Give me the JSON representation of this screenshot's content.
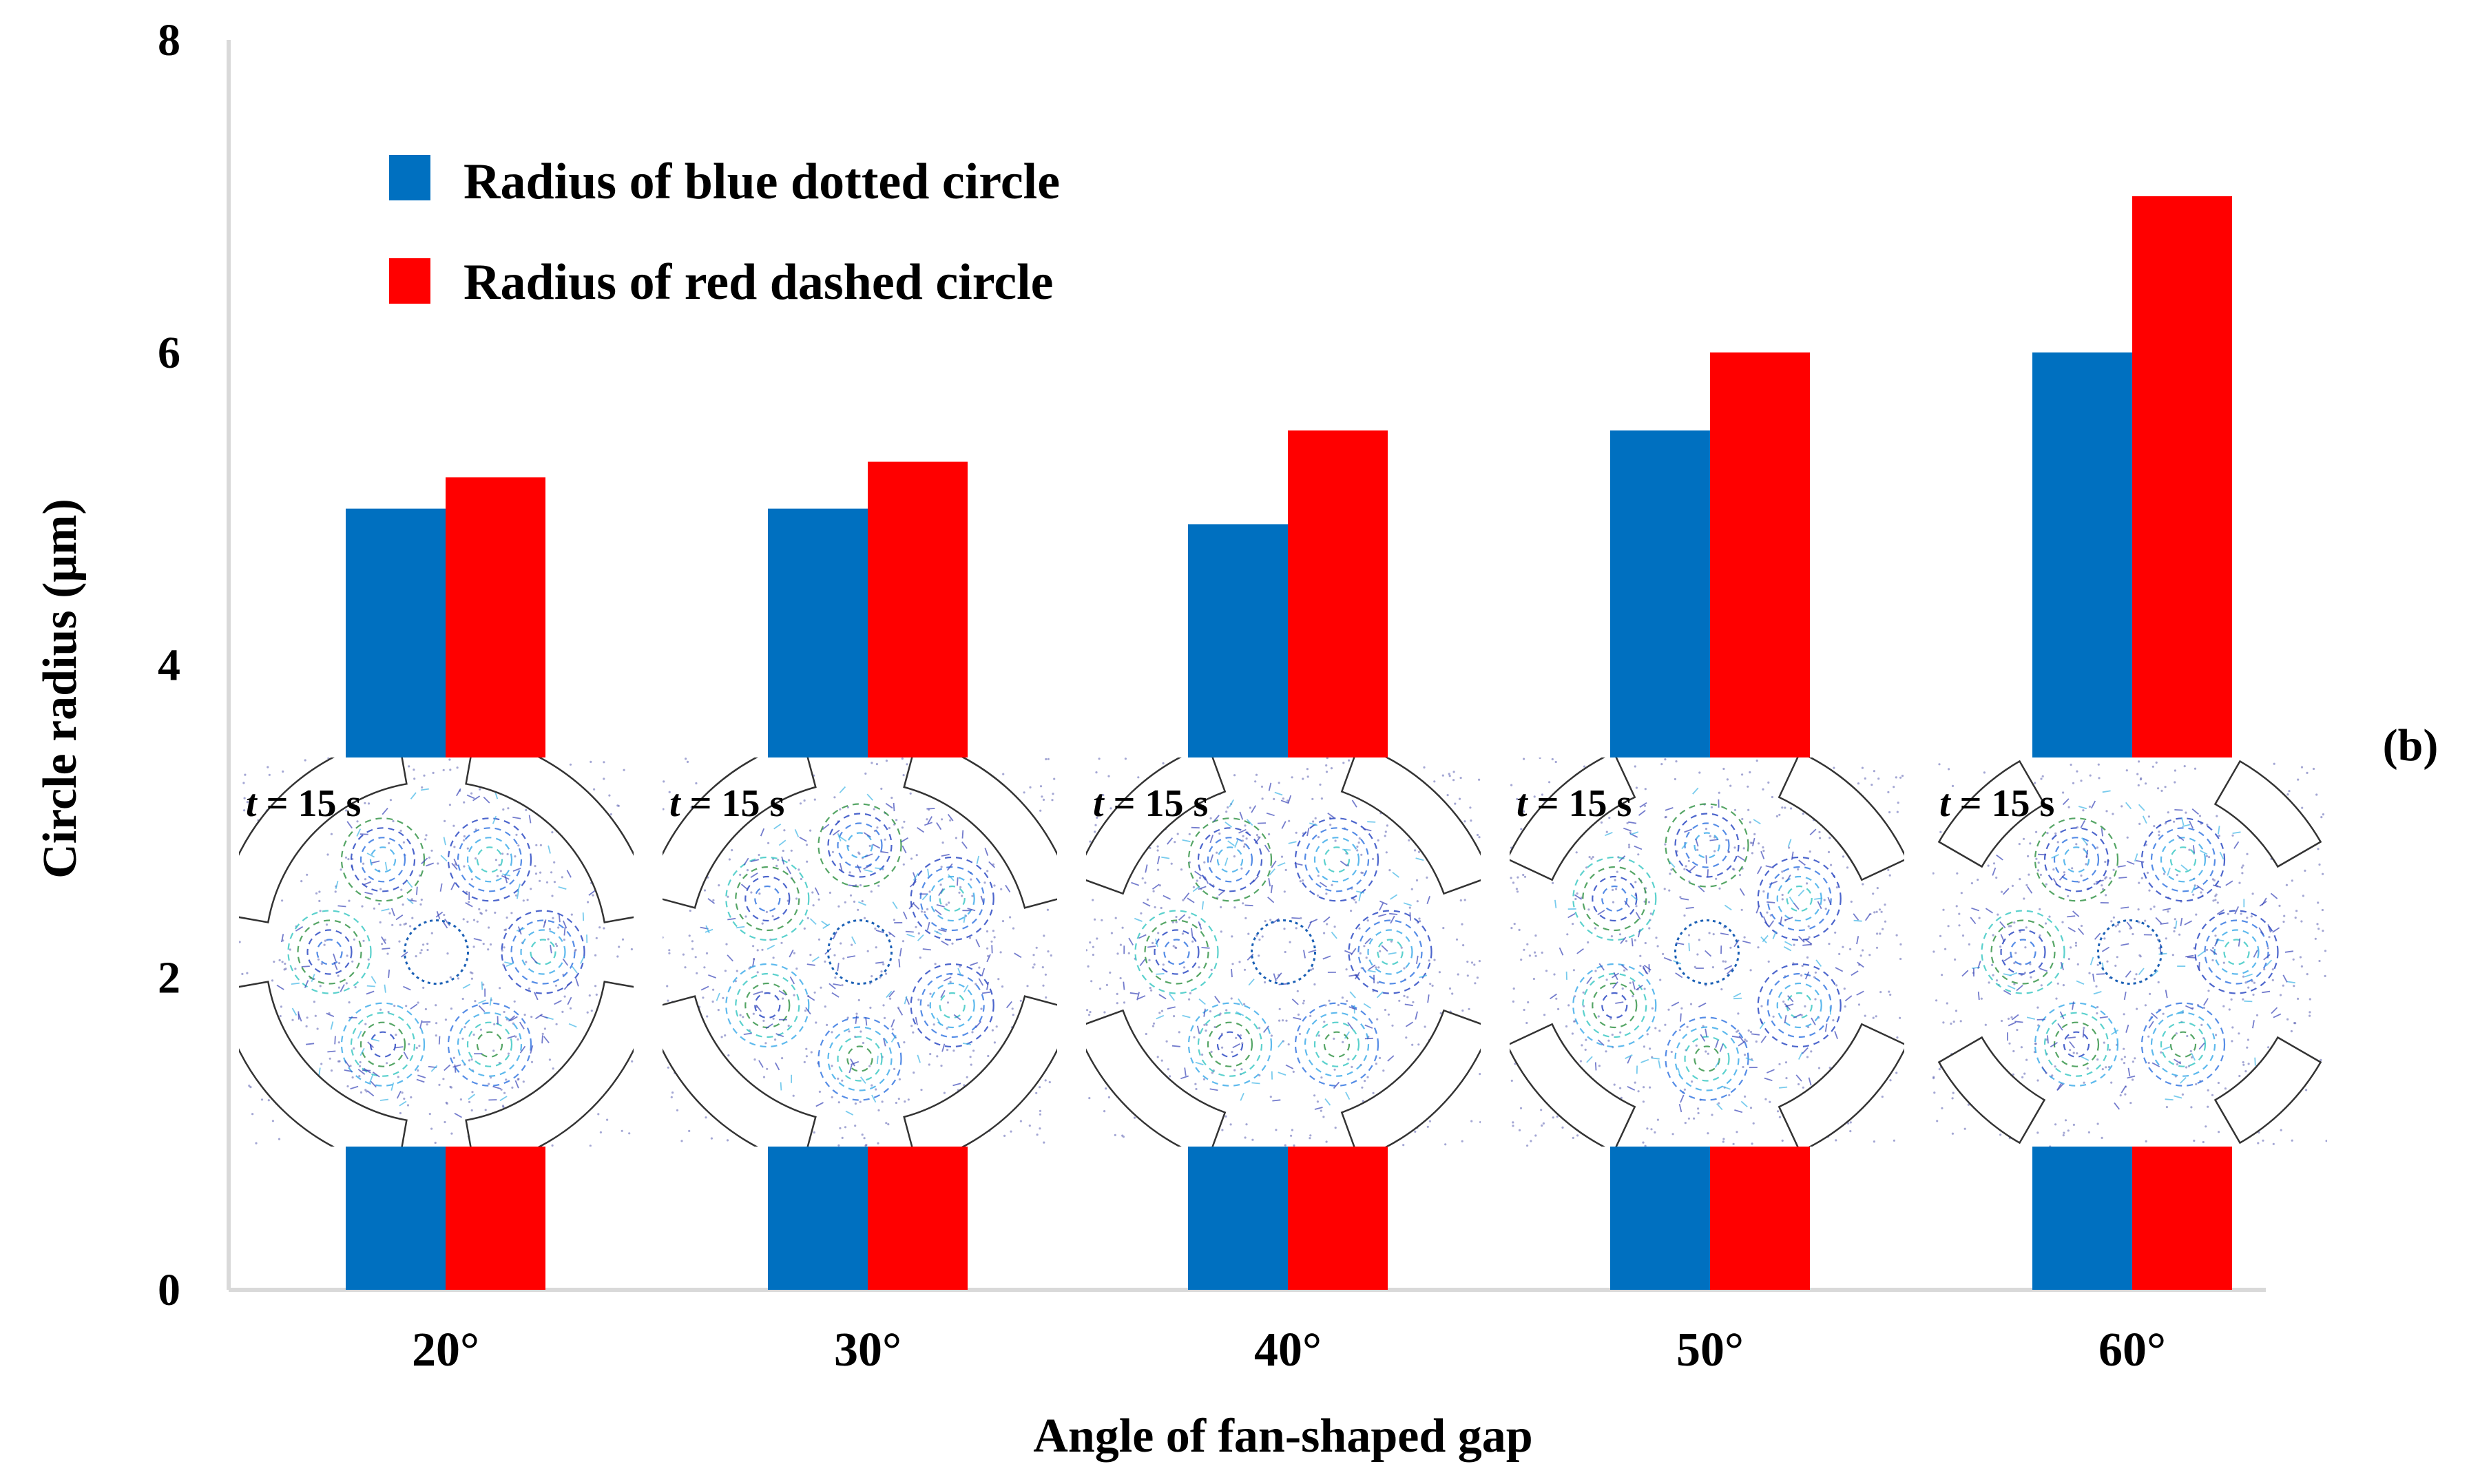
{
  "chart_data": {
    "type": "bar",
    "title": "",
    "xlabel": "Angle of fan-shaped gap",
    "ylabel": "Circle radius (μm)",
    "categories": [
      "20°",
      "30°",
      "40°",
      "50°",
      "60°"
    ],
    "series": [
      {
        "name": "Radius of blue dotted circle",
        "color": "#0070C0",
        "values": [
          5.0,
          5.0,
          4.9,
          5.5,
          6.0
        ]
      },
      {
        "name": "Radius of red dashed circle",
        "color": "#FF0000",
        "values": [
          5.2,
          5.3,
          5.5,
          6.0,
          7.0
        ]
      }
    ],
    "ylim": [
      0,
      8
    ],
    "yticks": [
      "0",
      "2",
      "4",
      "6",
      "8"
    ],
    "grid": false,
    "legend_position": "top-left",
    "panel_label": "(b)",
    "inset_labels": [
      {
        "t": "t",
        "rest": " = 15 s"
      },
      {
        "t": "t",
        "rest": " = 15 s"
      },
      {
        "t": "t",
        "rest": " = 15 s"
      },
      {
        "t": "t",
        "rest": " = 15 s"
      },
      {
        "t": "t",
        "rest": " = 15 s"
      }
    ],
    "inset_gap_angles": [
      20,
      30,
      40,
      50,
      60
    ]
  }
}
